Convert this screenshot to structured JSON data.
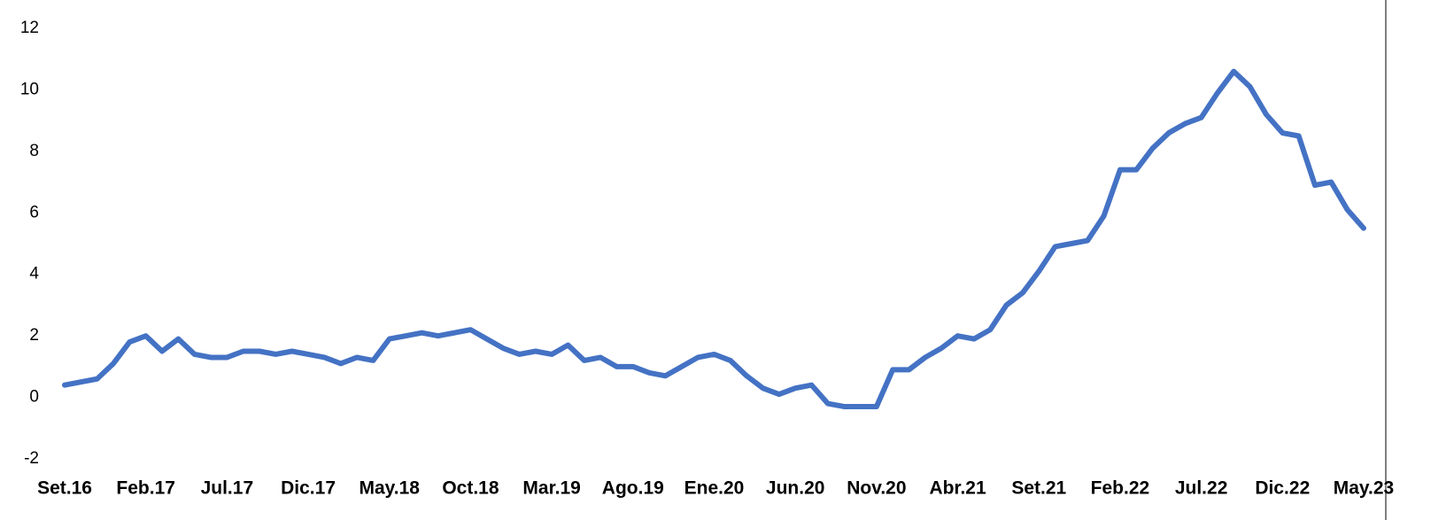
{
  "chart_data": {
    "type": "line",
    "categories": [
      "Set.16",
      null,
      null,
      null,
      null,
      "Feb.17",
      null,
      null,
      null,
      null,
      "Jul.17",
      null,
      null,
      null,
      null,
      "Dic.17",
      null,
      null,
      null,
      null,
      "May.18",
      null,
      null,
      null,
      null,
      "Oct.18",
      null,
      null,
      null,
      null,
      "Mar.19",
      null,
      null,
      null,
      null,
      "Ago.19",
      null,
      null,
      null,
      null,
      "Ene.20",
      null,
      null,
      null,
      null,
      "Jun.20",
      null,
      null,
      null,
      null,
      "Nov.20",
      null,
      null,
      null,
      null,
      "Abr.21",
      null,
      null,
      null,
      null,
      "Set.21",
      null,
      null,
      null,
      null,
      "Feb.22",
      null,
      null,
      null,
      null,
      "Jul.22",
      null,
      null,
      null,
      null,
      "Dic.22",
      null,
      null,
      null,
      null,
      "May.23"
    ],
    "series": [
      {
        "color": "#4472c4",
        "values": [
          0.4,
          0.5,
          0.6,
          1.1,
          1.8,
          2.0,
          1.5,
          1.9,
          1.4,
          1.3,
          1.3,
          1.5,
          1.5,
          1.4,
          1.5,
          1.4,
          1.3,
          1.1,
          1.3,
          1.2,
          1.9,
          2.0,
          2.1,
          2.0,
          2.1,
          2.2,
          1.9,
          1.6,
          1.4,
          1.5,
          1.4,
          1.7,
          1.2,
          1.3,
          1.0,
          1.0,
          0.8,
          0.7,
          1.0,
          1.3,
          1.4,
          1.2,
          0.7,
          0.3,
          0.1,
          0.3,
          0.4,
          -0.2,
          -0.3,
          -0.3,
          -0.3,
          0.9,
          0.9,
          1.3,
          1.6,
          2.0,
          1.9,
          2.2,
          3.0,
          3.4,
          4.1,
          4.9,
          5.0,
          5.1,
          5.9,
          7.4,
          7.4,
          8.1,
          8.6,
          8.9,
          9.1,
          9.9,
          10.6,
          10.1,
          9.2,
          8.6,
          8.5,
          6.9,
          7.0,
          6.1,
          5.5
        ]
      }
    ],
    "ylim": [
      -2,
      12
    ],
    "yticks": [
      -2,
      0,
      2,
      4,
      6,
      8,
      10,
      12
    ]
  }
}
